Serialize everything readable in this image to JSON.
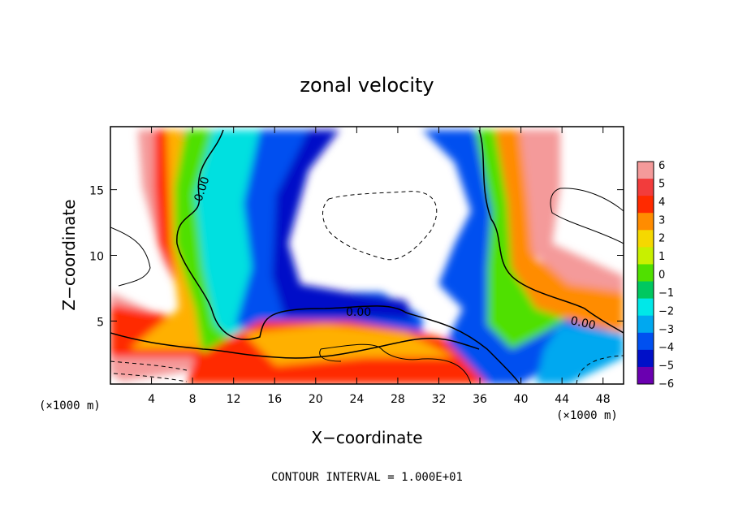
{
  "chart_data": {
    "type": "heatmap",
    "title": "zonal velocity",
    "xlabel": "X−coordinate",
    "ylabel": "Z−coordinate",
    "x_unit": "(×1000 m)",
    "x_unit_right": "(×1000 m)",
    "footer": "CONTOUR INTERVAL = 1.000E+01",
    "xlim": [
      0,
      50
    ],
    "ylim": [
      0.2,
      19.8
    ],
    "x_ticks": [
      4,
      8,
      12,
      16,
      20,
      24,
      28,
      32,
      36,
      40,
      44,
      48
    ],
    "y_ticks": [
      5,
      10,
      15
    ],
    "colorbar": {
      "levels": [
        6,
        5,
        4,
        3,
        2,
        1,
        0,
        -1,
        -2,
        -3,
        -4,
        -5,
        -6
      ],
      "labels": [
        "6",
        "5",
        "4",
        "3",
        "2",
        "1",
        "0",
        "−1",
        "−2",
        "−3",
        "−4",
        "−5",
        "−6"
      ],
      "colors": [
        "#f49a9a",
        "#f23c3c",
        "#ff2a00",
        "#ff8c00",
        "#f5d800",
        "#c8f000",
        "#50e000",
        "#00c860",
        "#00e8e8",
        "#00a8f0",
        "#0050f0",
        "#0010c8",
        "#6a00b0"
      ]
    },
    "contour_labels": [
      "0.00",
      "0.00",
      "0.00"
    ],
    "grid": false,
    "legend": "colorbar-right"
  }
}
